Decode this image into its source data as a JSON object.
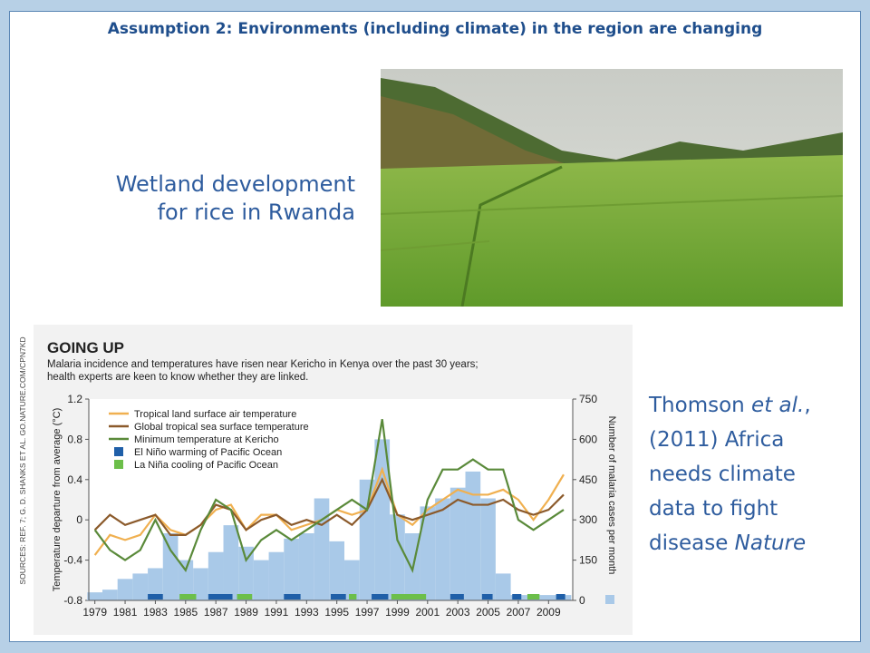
{
  "slide": {
    "heading": "Assumption 2: Environments (including climate) in the region are changing",
    "photo_caption": [
      "Wetland development",
      "for rice in Rwanda"
    ],
    "citation": [
      "Thomson ",
      "et al.",
      ", (2011) Africa needs climate data to fight disease ",
      "Nature"
    ],
    "sources": "SOURCES: REF. 7; G. D. SHANKS ET AL. GO.NATURE.COM/CPN7KD"
  },
  "chart_data": {
    "type": "line",
    "title": "GOING UP",
    "subtitle": [
      "Malaria incidence and temperatures have risen near Kericho in Kenya over the past 30 years;",
      "health experts are keen to know whether they are linked."
    ],
    "y_label": "Temperature departure from average (°C)",
    "y2_label": "Number of malaria cases per month",
    "x": [
      1979,
      1980,
      1981,
      1982,
      1983,
      1984,
      1985,
      1986,
      1987,
      1988,
      1989,
      1990,
      1991,
      1992,
      1993,
      1994,
      1995,
      1996,
      1997,
      1998,
      1999,
      2000,
      2001,
      2002,
      2003,
      2004,
      2005,
      2006,
      2007,
      2008,
      2009,
      2010
    ],
    "xlim": [
      1978.6,
      2010.6
    ],
    "xticks": [
      1979,
      1981,
      1983,
      1985,
      1987,
      1989,
      1991,
      1993,
      1995,
      1997,
      1999,
      2001,
      2003,
      2005,
      2007,
      2009
    ],
    "ylim": [
      -0.8,
      1.2
    ],
    "yticks": [
      -0.8,
      -0.4,
      0,
      0.4,
      0.8,
      1.2
    ],
    "y2lim": [
      0,
      750
    ],
    "y2ticks": [
      0,
      150,
      300,
      450,
      600,
      750
    ],
    "series": [
      {
        "name": "Malaria cases",
        "type": "bar",
        "axis": "y2",
        "color": "#a9c9e8",
        "values": [
          30,
          40,
          80,
          100,
          120,
          250,
          150,
          120,
          180,
          280,
          200,
          150,
          180,
          230,
          250,
          380,
          220,
          150,
          450,
          600,
          320,
          250,
          350,
          380,
          420,
          480,
          380,
          100,
          20,
          20,
          20,
          20
        ]
      },
      {
        "name": "Tropical land surface air temperature",
        "color": "#f0b050",
        "values": [
          -0.35,
          -0.15,
          -0.2,
          -0.15,
          0.05,
          -0.1,
          -0.15,
          -0.05,
          0.1,
          0.15,
          -0.1,
          0.05,
          0.05,
          -0.1,
          -0.05,
          0.0,
          0.1,
          0.05,
          0.1,
          0.5,
          0.05,
          -0.05,
          0.1,
          0.2,
          0.3,
          0.25,
          0.25,
          0.3,
          0.2,
          0.0,
          0.2,
          0.45
        ]
      },
      {
        "name": "Global tropical sea surface temperature",
        "color": "#8b5a2b",
        "values": [
          -0.1,
          0.05,
          -0.05,
          0.0,
          0.05,
          -0.15,
          -0.15,
          -0.05,
          0.15,
          0.1,
          -0.1,
          0.0,
          0.05,
          -0.05,
          0.0,
          -0.05,
          0.05,
          -0.05,
          0.1,
          0.4,
          0.05,
          0.0,
          0.05,
          0.1,
          0.2,
          0.15,
          0.15,
          0.2,
          0.1,
          0.05,
          0.1,
          0.25
        ]
      },
      {
        "name": "Minimum temperature at Kericho",
        "color": "#5a8a3a",
        "values": [
          -0.1,
          -0.3,
          -0.4,
          -0.3,
          0.0,
          -0.3,
          -0.5,
          -0.1,
          0.2,
          0.1,
          -0.4,
          -0.2,
          -0.1,
          -0.2,
          -0.1,
          0.0,
          0.1,
          0.2,
          0.1,
          1.0,
          -0.2,
          -0.5,
          0.2,
          0.5,
          0.5,
          0.6,
          0.5,
          0.5,
          0.0,
          -0.1,
          0.0,
          0.1
        ]
      }
    ],
    "events": [
      {
        "name": "El Niño warming of Pacific Ocean",
        "color": "#1f5fa8",
        "periods": [
          [
            1982.5,
            1983.5
          ],
          [
            1986.5,
            1988.1
          ],
          [
            1991.5,
            1992.6
          ],
          [
            1994.6,
            1995.6
          ],
          [
            1997.3,
            1998.4
          ],
          [
            2002.5,
            2003.4
          ],
          [
            2004.6,
            2005.3
          ],
          [
            2006.6,
            2007.2
          ],
          [
            2009.5,
            2010.1
          ]
        ]
      },
      {
        "name": "La Niña cooling of Pacific Ocean",
        "color": "#6cbf4a",
        "periods": [
          [
            1984.6,
            1985.7
          ],
          [
            1988.4,
            1989.4
          ],
          [
            1995.8,
            1996.3
          ],
          [
            1998.6,
            2000.9
          ],
          [
            2007.6,
            2008.4
          ]
        ]
      }
    ]
  }
}
